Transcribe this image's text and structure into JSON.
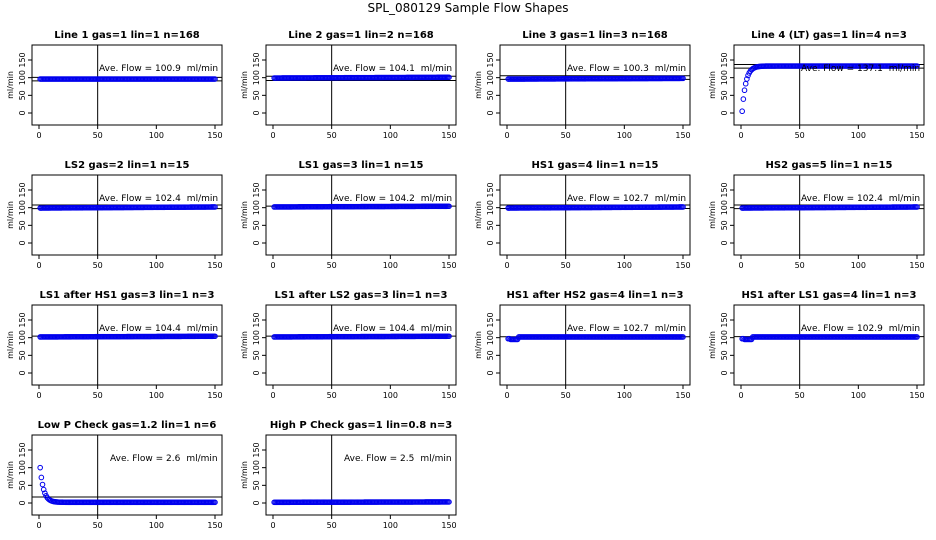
{
  "page": {
    "title": "SPL_080129  Sample Flow Shapes"
  },
  "colors": {
    "points": "#0000ee",
    "lines": "#000000"
  },
  "chart_data": [
    {
      "type": "scatter",
      "title": "Line 1 gas=1 lin=1 n=168",
      "ylabel": "ml/min",
      "xlim": [
        0,
        150
      ],
      "ylim": [
        0,
        150
      ],
      "xticks": [
        "0",
        "50",
        "100",
        "150"
      ],
      "yticks": [
        "0",
        "50",
        "100",
        "150"
      ],
      "vline": 50,
      "hlines": [
        100.9,
        90.9
      ],
      "annotation": {
        "label": "Ave. Flow = ",
        "value": "100.9",
        "unit": "ml/min"
      },
      "series": [
        {
          "x": [
            1,
            150
          ],
          "y": [
            96,
            96
          ],
          "shape": "steady"
        }
      ]
    },
    {
      "type": "scatter",
      "title": "Line 2 gas=1 lin=2 n=168",
      "ylabel": "ml/min",
      "xlim": [
        0,
        150
      ],
      "ylim": [
        0,
        150
      ],
      "xticks": [
        "0",
        "50",
        "100",
        "150"
      ],
      "yticks": [
        "0",
        "50",
        "100",
        "150"
      ],
      "vline": 50,
      "hlines": [
        104.1,
        92.1
      ],
      "annotation": {
        "label": "Ave. Flow = ",
        "value": "104.1",
        "unit": "ml/min"
      },
      "series": [
        {
          "x": [
            1,
            150
          ],
          "y": [
            99,
            101
          ],
          "shape": "steady"
        }
      ]
    },
    {
      "type": "scatter",
      "title": "Line 3 gas=1 lin=3 n=168",
      "ylabel": "ml/min",
      "xlim": [
        0,
        150
      ],
      "ylim": [
        0,
        150
      ],
      "xticks": [
        "0",
        "50",
        "100",
        "150"
      ],
      "yticks": [
        "0",
        "50",
        "100",
        "150"
      ],
      "vline": 50,
      "hlines": [
        105.3,
        95.3
      ],
      "annotation": {
        "label": "Ave. Flow = ",
        "value": "100.3",
        "unit": "ml/min"
      },
      "series": [
        {
          "x": [
            1,
            150
          ],
          "y": [
            96,
            98
          ],
          "shape": "steady"
        }
      ]
    },
    {
      "type": "scatter",
      "title": "Line 4 (LT) gas=1 lin=4 n=3",
      "ylabel": "ml/min",
      "xlim": [
        0,
        150
      ],
      "ylim": [
        0,
        150
      ],
      "xticks": [
        "0",
        "50",
        "100",
        "150"
      ],
      "yticks": [
        "0",
        "50",
        "100",
        "150"
      ],
      "vline": 50,
      "hlines": [
        137.1,
        127.1
      ],
      "annotation": {
        "label": "Ave. Flow = ",
        "value": "137.1",
        "unit": "ml/min"
      },
      "series": [
        {
          "x": [
            1,
            150
          ],
          "y": [
            5,
            133
          ],
          "shape": "rise"
        }
      ]
    },
    {
      "type": "scatter",
      "title": "LS2 gas=2 lin=1 n=15",
      "ylabel": "ml/min",
      "xlim": [
        0,
        150
      ],
      "ylim": [
        0,
        150
      ],
      "xticks": [
        "0",
        "50",
        "100",
        "150"
      ],
      "yticks": [
        "0",
        "50",
        "100",
        "150"
      ],
      "vline": 50,
      "hlines": [
        107.4,
        97.4
      ],
      "annotation": {
        "label": "Ave. Flow = ",
        "value": "102.4",
        "unit": "ml/min"
      },
      "series": [
        {
          "x": [
            1,
            150
          ],
          "y": [
            99,
            102
          ],
          "shape": "steady"
        }
      ]
    },
    {
      "type": "scatter",
      "title": "LS1 gas=3 lin=1 n=15",
      "ylabel": "ml/min",
      "xlim": [
        0,
        150
      ],
      "ylim": [
        0,
        150
      ],
      "xticks": [
        "0",
        "50",
        "100",
        "150"
      ],
      "yticks": [
        "0",
        "50",
        "100",
        "150"
      ],
      "vline": 50,
      "hlines": [
        104.2
      ],
      "annotation": {
        "label": "Ave. Flow = ",
        "value": "104.2",
        "unit": "ml/min"
      },
      "series": [
        {
          "x": [
            1,
            150
          ],
          "y": [
            102,
            104
          ],
          "shape": "steady"
        }
      ]
    },
    {
      "type": "scatter",
      "title": "HS1 gas=4 lin=1 n=15",
      "ylabel": "ml/min",
      "xlim": [
        0,
        150
      ],
      "ylim": [
        0,
        150
      ],
      "xticks": [
        "0",
        "50",
        "100",
        "150"
      ],
      "yticks": [
        "0",
        "50",
        "100",
        "150"
      ],
      "vline": 50,
      "hlines": [
        107.7,
        97.7
      ],
      "annotation": {
        "label": "Ave. Flow = ",
        "value": "102.7",
        "unit": "ml/min"
      },
      "series": [
        {
          "x": [
            1,
            150
          ],
          "y": [
            99,
            102
          ],
          "shape": "steady"
        }
      ]
    },
    {
      "type": "scatter",
      "title": "HS2 gas=5 lin=1 n=15",
      "ylabel": "ml/min",
      "xlim": [
        0,
        150
      ],
      "ylim": [
        0,
        150
      ],
      "xticks": [
        "0",
        "50",
        "100",
        "150"
      ],
      "yticks": [
        "0",
        "50",
        "100",
        "150"
      ],
      "vline": 50,
      "hlines": [
        107.4,
        97.4
      ],
      "annotation": {
        "label": "Ave. Flow = ",
        "value": "102.4",
        "unit": "ml/min"
      },
      "series": [
        {
          "x": [
            1,
            150
          ],
          "y": [
            99,
            102
          ],
          "shape": "steady"
        }
      ]
    },
    {
      "type": "scatter",
      "title": "LS1 after HS1 gas=3 lin=1 n=3",
      "ylabel": "ml/min",
      "xlim": [
        0,
        150
      ],
      "ylim": [
        0,
        150
      ],
      "xticks": [
        "0",
        "50",
        "100",
        "150"
      ],
      "yticks": [
        "0",
        "50",
        "100",
        "150"
      ],
      "vline": 50,
      "hlines": [
        104.4
      ],
      "annotation": {
        "label": "Ave. Flow = ",
        "value": "104.4",
        "unit": "ml/min"
      },
      "series": [
        {
          "x": [
            1,
            150
          ],
          "y": [
            102,
            104
          ],
          "shape": "steady"
        }
      ]
    },
    {
      "type": "scatter",
      "title": "LS1 after LS2 gas=3 lin=1 n=3",
      "ylabel": "ml/min",
      "xlim": [
        0,
        150
      ],
      "ylim": [
        0,
        150
      ],
      "xticks": [
        "0",
        "50",
        "100",
        "150"
      ],
      "yticks": [
        "0",
        "50",
        "100",
        "150"
      ],
      "vline": 50,
      "hlines": [
        104.4
      ],
      "annotation": {
        "label": "Ave. Flow = ",
        "value": "104.4",
        "unit": "ml/min"
      },
      "series": [
        {
          "x": [
            1,
            150
          ],
          "y": [
            102,
            104
          ],
          "shape": "steady"
        }
      ]
    },
    {
      "type": "scatter",
      "title": "HS1 after HS2 gas=4 lin=1 n=3",
      "ylabel": "ml/min",
      "xlim": [
        0,
        150
      ],
      "ylim": [
        0,
        150
      ],
      "xticks": [
        "0",
        "50",
        "100",
        "150"
      ],
      "yticks": [
        "0",
        "50",
        "100",
        "150"
      ],
      "vline": 50,
      "hlines": [
        102.7
      ],
      "annotation": {
        "label": "Ave. Flow = ",
        "value": "102.7",
        "unit": "ml/min"
      },
      "series": [
        {
          "x": [
            1,
            150
          ],
          "y": [
            97,
            102
          ],
          "shape": "dip"
        }
      ]
    },
    {
      "type": "scatter",
      "title": "HS1 after LS1 gas=4 lin=1 n=3",
      "ylabel": "ml/min",
      "xlim": [
        0,
        150
      ],
      "ylim": [
        0,
        150
      ],
      "xticks": [
        "0",
        "50",
        "100",
        "150"
      ],
      "yticks": [
        "0",
        "50",
        "100",
        "150"
      ],
      "vline": 50,
      "hlines": [
        102.9
      ],
      "annotation": {
        "label": "Ave. Flow = ",
        "value": "102.9",
        "unit": "ml/min"
      },
      "series": [
        {
          "x": [
            1,
            150
          ],
          "y": [
            97,
            102
          ],
          "shape": "dip"
        }
      ]
    },
    {
      "type": "scatter",
      "title": "Low P Check gas=1.2 lin=1 n=6",
      "ylabel": "ml/min",
      "xlim": [
        0,
        150
      ],
      "ylim": [
        0,
        150
      ],
      "xticks": [
        "0",
        "50",
        "100",
        "150"
      ],
      "yticks": [
        "0",
        "50",
        "100",
        "150"
      ],
      "vline": 50,
      "hlines": [
        17
      ],
      "annotation": {
        "label": "Ave. Flow = ",
        "value": "2.6",
        "unit": "ml/min"
      },
      "series": [
        {
          "x": [
            1,
            150
          ],
          "y": [
            100,
            2
          ],
          "shape": "decay"
        }
      ]
    },
    {
      "type": "scatter",
      "title": "High P Check gas=1 lin=0.8 n=3",
      "ylabel": "ml/min",
      "xlim": [
        0,
        150
      ],
      "ylim": [
        0,
        150
      ],
      "xticks": [
        "0",
        "50",
        "100",
        "150"
      ],
      "yticks": [
        "0",
        "50",
        "100",
        "150"
      ],
      "vline": 50,
      "hlines": [],
      "annotation": {
        "label": "Ave. Flow = ",
        "value": "2.5",
        "unit": "ml/min"
      },
      "series": [
        {
          "x": [
            1,
            150
          ],
          "y": [
            2,
            3
          ],
          "shape": "steady"
        }
      ]
    }
  ]
}
